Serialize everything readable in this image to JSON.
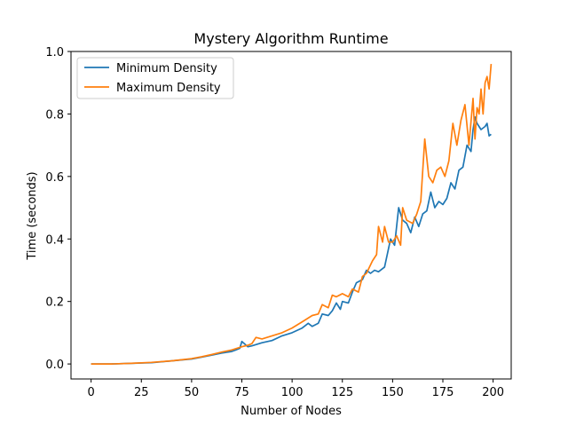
{
  "chart_data": {
    "type": "line",
    "title": "Mystery Algorithm Runtime",
    "xlabel": "Number of Nodes",
    "ylabel": "Time (seconds)",
    "xlim": [
      -10,
      209
    ],
    "ylim": [
      -0.048,
      1.0
    ],
    "xticks": [
      0,
      25,
      50,
      75,
      100,
      125,
      150,
      175,
      200
    ],
    "yticks": [
      0.0,
      0.2,
      0.4,
      0.6,
      0.8,
      1.0
    ],
    "legend_position": "upper-left",
    "series": [
      {
        "name": "Minimum Density",
        "color": "#1f77b4",
        "x": [
          0,
          10,
          20,
          30,
          40,
          50,
          55,
          60,
          65,
          70,
          72,
          74,
          75,
          78,
          80,
          85,
          90,
          95,
          100,
          105,
          108,
          110,
          113,
          115,
          118,
          120,
          122,
          124,
          125,
          128,
          130,
          132,
          135,
          137,
          139,
          141,
          143,
          146,
          149,
          151,
          153,
          155,
          157,
          159,
          161,
          163,
          165,
          167,
          169,
          171,
          173,
          175,
          177,
          179,
          181,
          183,
          185,
          187,
          189,
          190,
          191,
          192,
          194,
          196,
          197,
          198,
          199
        ],
        "values": [
          0.0,
          0.0,
          0.002,
          0.004,
          0.01,
          0.016,
          0.022,
          0.028,
          0.035,
          0.04,
          0.045,
          0.05,
          0.072,
          0.055,
          0.058,
          0.068,
          0.075,
          0.09,
          0.1,
          0.115,
          0.13,
          0.12,
          0.13,
          0.16,
          0.155,
          0.17,
          0.195,
          0.175,
          0.2,
          0.195,
          0.23,
          0.26,
          0.27,
          0.3,
          0.29,
          0.3,
          0.295,
          0.31,
          0.4,
          0.38,
          0.5,
          0.46,
          0.45,
          0.42,
          0.47,
          0.44,
          0.48,
          0.49,
          0.55,
          0.5,
          0.52,
          0.51,
          0.53,
          0.58,
          0.56,
          0.62,
          0.63,
          0.7,
          0.68,
          0.75,
          0.79,
          0.77,
          0.75,
          0.76,
          0.77,
          0.73,
          0.735
        ]
      },
      {
        "name": "Maximum Density",
        "color": "#ff7f0e",
        "x": [
          0,
          10,
          20,
          30,
          40,
          50,
          55,
          60,
          65,
          70,
          75,
          78,
          80,
          82,
          85,
          90,
          95,
          100,
          105,
          110,
          113,
          115,
          118,
          120,
          122,
          125,
          128,
          130,
          133,
          135,
          137,
          140,
          142,
          143,
          145,
          146,
          148,
          150,
          152,
          154,
          155,
          157,
          160,
          162,
          164,
          166,
          168,
          170,
          172,
          174,
          176,
          178,
          180,
          182,
          184,
          186,
          188,
          190,
          191,
          192,
          193,
          194,
          195,
          196,
          197,
          198,
          199
        ],
        "values": [
          0.0,
          0.0,
          0.002,
          0.005,
          0.01,
          0.017,
          0.023,
          0.03,
          0.038,
          0.045,
          0.055,
          0.06,
          0.065,
          0.085,
          0.08,
          0.09,
          0.1,
          0.115,
          0.135,
          0.155,
          0.16,
          0.19,
          0.18,
          0.22,
          0.215,
          0.225,
          0.215,
          0.24,
          0.23,
          0.28,
          0.29,
          0.33,
          0.35,
          0.44,
          0.39,
          0.44,
          0.39,
          0.39,
          0.41,
          0.38,
          0.5,
          0.46,
          0.45,
          0.48,
          0.52,
          0.72,
          0.6,
          0.58,
          0.62,
          0.63,
          0.6,
          0.65,
          0.77,
          0.7,
          0.78,
          0.83,
          0.7,
          0.85,
          0.72,
          0.82,
          0.8,
          0.88,
          0.8,
          0.9,
          0.92,
          0.88,
          0.96
        ]
      }
    ]
  }
}
